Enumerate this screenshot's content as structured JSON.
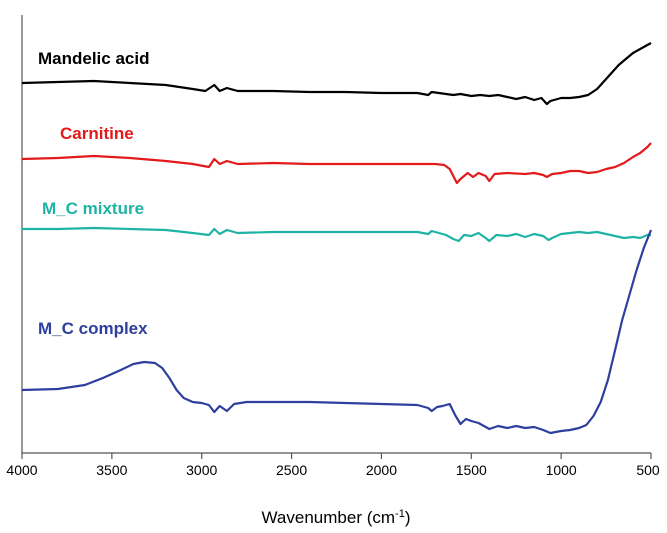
{
  "chart_data": {
    "type": "line",
    "xlabel": "Wavenumber (cm",
    "xlabel_sup": "-1",
    "xlabel_close": ")",
    "ylabel": "",
    "xlim": [
      4000,
      500
    ],
    "x_reversed": true,
    "grid": false,
    "ticks": [
      "4000",
      "3500",
      "3000",
      "2500",
      "2000",
      "1500",
      "1000",
      "500"
    ],
    "tick_values": [
      4000,
      3500,
      3000,
      2500,
      2000,
      1500,
      1000,
      500
    ],
    "series": [
      {
        "name": "Mandelic acid",
        "color": "#000000",
        "points": [
          [
            4000,
            0.0
          ],
          [
            3800,
            -1
          ],
          [
            3600,
            -2
          ],
          [
            3400,
            0
          ],
          [
            3200,
            2
          ],
          [
            3050,
            6
          ],
          [
            2980,
            8
          ],
          [
            2930,
            2
          ],
          [
            2900,
            8
          ],
          [
            2860,
            5
          ],
          [
            2800,
            8
          ],
          [
            2600,
            8
          ],
          [
            2400,
            9
          ],
          [
            2200,
            9
          ],
          [
            2000,
            10
          ],
          [
            1800,
            10
          ],
          [
            1740,
            12
          ],
          [
            1720,
            9
          ],
          [
            1680,
            10
          ],
          [
            1600,
            12
          ],
          [
            1560,
            11
          ],
          [
            1500,
            13
          ],
          [
            1450,
            12
          ],
          [
            1400,
            13
          ],
          [
            1350,
            12
          ],
          [
            1300,
            14
          ],
          [
            1250,
            16
          ],
          [
            1200,
            14
          ],
          [
            1150,
            17
          ],
          [
            1110,
            15
          ],
          [
            1080,
            21
          ],
          [
            1060,
            18
          ],
          [
            1000,
            15
          ],
          [
            950,
            15
          ],
          [
            900,
            14
          ],
          [
            850,
            12
          ],
          [
            800,
            6
          ],
          [
            760,
            -2
          ],
          [
            720,
            -10
          ],
          [
            680,
            -18
          ],
          [
            640,
            -24
          ],
          [
            600,
            -30
          ],
          [
            560,
            -34
          ],
          [
            520,
            -38
          ],
          [
            500,
            -40
          ]
        ]
      },
      {
        "name": "Carnitine",
        "color": "#e31a1c",
        "points": [
          [
            4000,
            0
          ],
          [
            3800,
            -1
          ],
          [
            3600,
            -3
          ],
          [
            3400,
            -1
          ],
          [
            3200,
            2
          ],
          [
            3050,
            5
          ],
          [
            2960,
            8
          ],
          [
            2930,
            0
          ],
          [
            2900,
            5
          ],
          [
            2860,
            2
          ],
          [
            2800,
            5
          ],
          [
            2600,
            4
          ],
          [
            2400,
            5
          ],
          [
            2200,
            5
          ],
          [
            2000,
            5
          ],
          [
            1800,
            5
          ],
          [
            1700,
            5
          ],
          [
            1650,
            6
          ],
          [
            1620,
            10
          ],
          [
            1580,
            24
          ],
          [
            1560,
            20
          ],
          [
            1520,
            14
          ],
          [
            1490,
            18
          ],
          [
            1460,
            14
          ],
          [
            1420,
            17
          ],
          [
            1400,
            22
          ],
          [
            1370,
            15
          ],
          [
            1300,
            14
          ],
          [
            1200,
            15
          ],
          [
            1150,
            14
          ],
          [
            1100,
            16
          ],
          [
            1080,
            18
          ],
          [
            1050,
            15
          ],
          [
            1000,
            14
          ],
          [
            950,
            12
          ],
          [
            900,
            12
          ],
          [
            850,
            14
          ],
          [
            800,
            13
          ],
          [
            750,
            10
          ],
          [
            700,
            8
          ],
          [
            650,
            4
          ],
          [
            600,
            -2
          ],
          [
            560,
            -6
          ],
          [
            520,
            -12
          ],
          [
            500,
            -16
          ]
        ]
      },
      {
        "name": "M_C mixture",
        "color": "#1fb3a6",
        "points": [
          [
            4000,
            0
          ],
          [
            3800,
            0
          ],
          [
            3600,
            -1
          ],
          [
            3400,
            0
          ],
          [
            3200,
            1
          ],
          [
            3050,
            4
          ],
          [
            2960,
            6
          ],
          [
            2930,
            0
          ],
          [
            2900,
            5
          ],
          [
            2860,
            1
          ],
          [
            2800,
            4
          ],
          [
            2600,
            3
          ],
          [
            2400,
            3
          ],
          [
            2200,
            3
          ],
          [
            2000,
            3
          ],
          [
            1800,
            3
          ],
          [
            1740,
            5
          ],
          [
            1720,
            2
          ],
          [
            1680,
            4
          ],
          [
            1640,
            6
          ],
          [
            1600,
            10
          ],
          [
            1570,
            12
          ],
          [
            1540,
            6
          ],
          [
            1500,
            7
          ],
          [
            1460,
            4
          ],
          [
            1420,
            9
          ],
          [
            1400,
            12
          ],
          [
            1360,
            6
          ],
          [
            1300,
            7
          ],
          [
            1250,
            5
          ],
          [
            1200,
            8
          ],
          [
            1150,
            5
          ],
          [
            1100,
            7
          ],
          [
            1070,
            11
          ],
          [
            1050,
            9
          ],
          [
            1000,
            5
          ],
          [
            950,
            4
          ],
          [
            900,
            3
          ],
          [
            850,
            4
          ],
          [
            800,
            3
          ],
          [
            750,
            5
          ],
          [
            700,
            7
          ],
          [
            650,
            9
          ],
          [
            600,
            8
          ],
          [
            560,
            9
          ],
          [
            520,
            6
          ],
          [
            500,
            6
          ]
        ]
      },
      {
        "name": "M_C complex",
        "color": "#2e3f9e",
        "points": [
          [
            4000,
            0
          ],
          [
            3800,
            -1
          ],
          [
            3650,
            -5
          ],
          [
            3550,
            -12
          ],
          [
            3450,
            -20
          ],
          [
            3380,
            -26
          ],
          [
            3320,
            -28
          ],
          [
            3260,
            -27
          ],
          [
            3220,
            -22
          ],
          [
            3180,
            -12
          ],
          [
            3140,
            0
          ],
          [
            3100,
            8
          ],
          [
            3050,
            12
          ],
          [
            3000,
            13
          ],
          [
            2960,
            15
          ],
          [
            2930,
            22
          ],
          [
            2900,
            16
          ],
          [
            2860,
            21
          ],
          [
            2820,
            14
          ],
          [
            2750,
            12
          ],
          [
            2600,
            12
          ],
          [
            2400,
            12
          ],
          [
            2200,
            13
          ],
          [
            2000,
            14
          ],
          [
            1800,
            15
          ],
          [
            1740,
            18
          ],
          [
            1720,
            21
          ],
          [
            1690,
            17
          ],
          [
            1660,
            16
          ],
          [
            1620,
            14
          ],
          [
            1590,
            25
          ],
          [
            1560,
            34
          ],
          [
            1530,
            29
          ],
          [
            1500,
            31
          ],
          [
            1460,
            33
          ],
          [
            1420,
            37
          ],
          [
            1400,
            39
          ],
          [
            1350,
            36
          ],
          [
            1300,
            38
          ],
          [
            1250,
            36
          ],
          [
            1200,
            38
          ],
          [
            1150,
            37
          ],
          [
            1100,
            40
          ],
          [
            1060,
            43
          ],
          [
            1000,
            41
          ],
          [
            950,
            40
          ],
          [
            900,
            38
          ],
          [
            860,
            35
          ],
          [
            820,
            26
          ],
          [
            780,
            12
          ],
          [
            740,
            -10
          ],
          [
            700,
            -40
          ],
          [
            660,
            -70
          ],
          [
            620,
            -95
          ],
          [
            580,
            -120
          ],
          [
            540,
            -142
          ],
          [
            500,
            -160
          ]
        ]
      }
    ]
  }
}
